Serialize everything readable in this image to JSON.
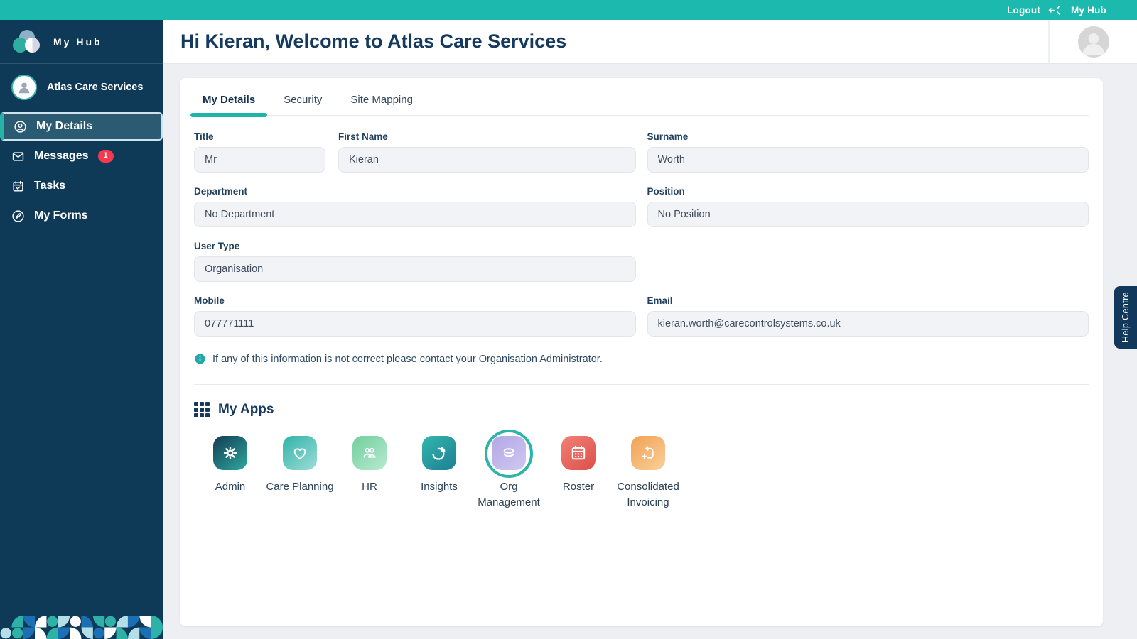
{
  "colors": {
    "accent_teal": "#1cb9ae",
    "sidebar_navy": "#0e3a57",
    "heading_navy": "#16395e",
    "badge_red": "#f6394f",
    "active_item_bg": "#2b5a73",
    "input_bg": "#f2f3f7"
  },
  "topbar": {
    "logout_label": "Logout",
    "brand_label": "My Hub"
  },
  "sidebar": {
    "logo_label": "My Hub",
    "org_name": "Atlas Care Services",
    "items": [
      {
        "label": "My Details",
        "icon": "person-circle-icon",
        "active": true
      },
      {
        "label": "Messages",
        "icon": "envelope-icon",
        "badge": "1"
      },
      {
        "label": "Tasks",
        "icon": "calendar-check-icon"
      },
      {
        "label": "My Forms",
        "icon": "pencil-circle-icon"
      }
    ]
  },
  "header": {
    "title": "Hi Kieran, Welcome to Atlas Care Services"
  },
  "tabs": [
    {
      "label": "My Details",
      "active": true
    },
    {
      "label": "Security",
      "active": false
    },
    {
      "label": "Site Mapping",
      "active": false
    }
  ],
  "form": {
    "fields": {
      "title": {
        "label": "Title",
        "value": "Mr"
      },
      "first_name": {
        "label": "First Name",
        "value": "Kieran"
      },
      "surname": {
        "label": "Surname",
        "value": "Worth"
      },
      "department": {
        "label": "Department",
        "value": "No Department"
      },
      "position": {
        "label": "Position",
        "value": "No Position"
      },
      "user_type": {
        "label": "User Type",
        "value": "Organisation"
      },
      "mobile": {
        "label": "Mobile",
        "value": "077771111"
      },
      "email": {
        "label": "Email",
        "value": "kieran.worth@carecontrolsystems.co.uk"
      }
    },
    "info_note": "If any of this information is not correct please contact your Organisation Administrator."
  },
  "my_apps": {
    "title": "My Apps",
    "apps": [
      {
        "label": "Admin",
        "icon": "gear-icon",
        "gradient_from": "#123c55",
        "gradient_to": "#2fa89c",
        "highlighted": false
      },
      {
        "label": "Care Planning",
        "icon": "heart-icon",
        "gradient_from": "#2fb3a8",
        "gradient_to": "#9fdcd6",
        "highlighted": false
      },
      {
        "label": "HR",
        "icon": "people-icon",
        "gradient_from": "#6fcf9b",
        "gradient_to": "#b9e9d2",
        "highlighted": false
      },
      {
        "label": "Insights",
        "icon": "pie-chart-icon",
        "gradient_from": "#33b6ac",
        "gradient_to": "#1d7f95",
        "highlighted": false
      },
      {
        "label": "Org Management",
        "icon": "layers-icon",
        "gradient_from": "#b3a7e6",
        "gradient_to": "#cfc8f0",
        "highlighted": true
      },
      {
        "label": "Roster",
        "icon": "calendar-icon",
        "gradient_from": "#f08176",
        "gradient_to": "#dd4f4a",
        "highlighted": false
      },
      {
        "label": "Consolidated Invoicing",
        "icon": "invoice-icon",
        "gradient_from": "#f2a254",
        "gradient_to": "#f9cf9a",
        "highlighted": false
      }
    ]
  },
  "help_tab": {
    "label": "Help Centre"
  }
}
